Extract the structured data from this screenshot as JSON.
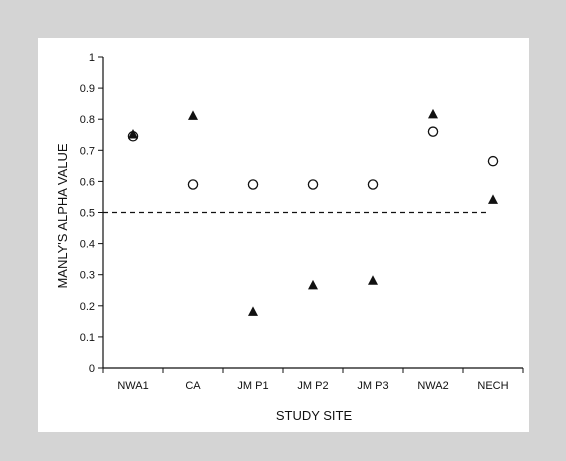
{
  "chart_data": {
    "type": "scatter",
    "title": "",
    "xlabel": "STUDY SITE",
    "ylabel": "MANLY'S ALPHA VALUE",
    "categories": [
      "NWA1",
      "CA",
      "JM P1",
      "JM P2",
      "JM P3",
      "NWA2",
      "NECH"
    ],
    "ylim": [
      0,
      1
    ],
    "yticks": [
      "0",
      "0.1",
      "0.2",
      "0.3",
      "0.4",
      "0.5",
      "0.6",
      "0.7",
      "0.8",
      "0.9",
      "1"
    ],
    "series": [
      {
        "marker": "triangle",
        "fill": "#111111",
        "values": [
          0.75,
          0.81,
          0.18,
          0.265,
          0.28,
          0.815,
          0.54
        ]
      },
      {
        "marker": "circle",
        "fill": "#ffffff",
        "values": [
          0.745,
          0.59,
          0.59,
          0.59,
          0.59,
          0.76,
          0.665
        ]
      }
    ],
    "reference_line": {
      "y": 0.5,
      "style": "dashed"
    },
    "grid": false,
    "legend": "none"
  }
}
